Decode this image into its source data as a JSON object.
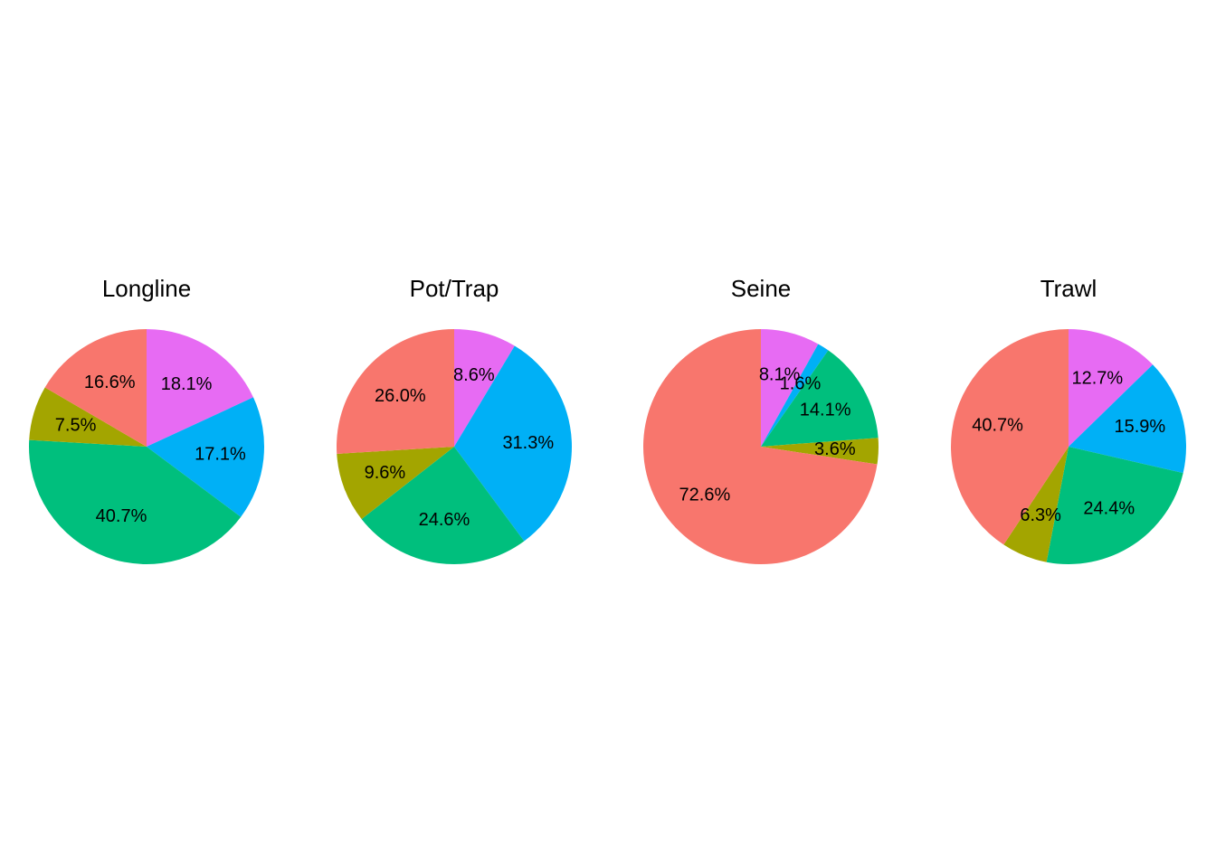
{
  "chart_data": [
    {
      "type": "pie",
      "title": "Longline",
      "slices": [
        {
          "value": 18.1,
          "label": "18.1%",
          "color": "#E76BF3"
        },
        {
          "value": 17.1,
          "label": "17.1%",
          "color": "#00B0F6"
        },
        {
          "value": 40.7,
          "label": "40.7%",
          "color": "#00BF7D"
        },
        {
          "value": 7.5,
          "label": "7.5%",
          "color": "#A3A500"
        },
        {
          "value": 16.6,
          "label": "16.6%",
          "color": "#F8766D"
        }
      ]
    },
    {
      "type": "pie",
      "title": "Pot/Trap",
      "slices": [
        {
          "value": 8.6,
          "label": "8.6%",
          "color": "#E76BF3"
        },
        {
          "value": 31.3,
          "label": "31.3%",
          "color": "#00B0F6"
        },
        {
          "value": 24.6,
          "label": "24.6%",
          "color": "#00BF7D"
        },
        {
          "value": 9.6,
          "label": "9.6%",
          "color": "#A3A500"
        },
        {
          "value": 26.0,
          "label": "26.0%",
          "color": "#F8766D"
        }
      ]
    },
    {
      "type": "pie",
      "title": "Seine",
      "slices": [
        {
          "value": 8.1,
          "label": "8.1%",
          "color": "#E76BF3"
        },
        {
          "value": 1.6,
          "label": "1.6%",
          "color": "#00B0F6"
        },
        {
          "value": 14.1,
          "label": "14.1%",
          "color": "#00BF7D"
        },
        {
          "value": 3.6,
          "label": "3.6%",
          "color": "#A3A500"
        },
        {
          "value": 72.6,
          "label": "72.6%",
          "color": "#F8766D"
        }
      ]
    },
    {
      "type": "pie",
      "title": "Trawl",
      "slices": [
        {
          "value": 12.7,
          "label": "12.7%",
          "color": "#E76BF3"
        },
        {
          "value": 15.9,
          "label": "15.9%",
          "color": "#00B0F6"
        },
        {
          "value": 24.4,
          "label": "24.4%",
          "color": "#00BF7D"
        },
        {
          "value": 6.3,
          "label": "6.3%",
          "color": "#A3A500"
        },
        {
          "value": 40.7,
          "label": "40.7%",
          "color": "#F8766D"
        }
      ]
    }
  ]
}
